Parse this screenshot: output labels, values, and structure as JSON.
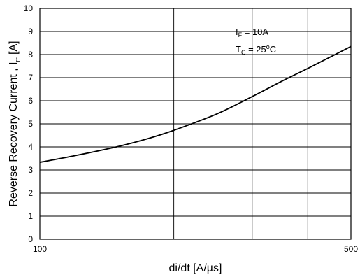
{
  "chart_data": {
    "type": "line",
    "title": "",
    "xlabel": "di/dt [A/µs]",
    "ylabel": {
      "main": "Reverse Recovery Current , I",
      "subscript": "rr",
      "unit": " [A]"
    },
    "x_scale": "log",
    "xlim": [
      100,
      500
    ],
    "ylim": [
      0,
      10
    ],
    "x_ticks": [
      "100",
      "500"
    ],
    "x_gridlines": [
      200,
      300,
      400
    ],
    "y_ticks": [
      "0",
      "1",
      "2",
      "3",
      "4",
      "5",
      "6",
      "7",
      "8",
      "9",
      "10"
    ],
    "grid": true,
    "series": [
      {
        "x": [
          100,
          120,
          150,
          175,
          200,
          250,
          300,
          350,
          400,
          450,
          500
        ],
        "y": [
          3.33,
          3.62,
          4.02,
          4.36,
          4.72,
          5.43,
          6.18,
          6.85,
          7.4,
          7.9,
          8.35
        ]
      }
    ],
    "annotations": {
      "line1": {
        "main": "I",
        "sub": "F",
        "rest": " = 10A"
      },
      "line2": {
        "main": "T",
        "sub": "C",
        "rest": " = 25",
        "sup": "o",
        "end": "C"
      }
    }
  }
}
